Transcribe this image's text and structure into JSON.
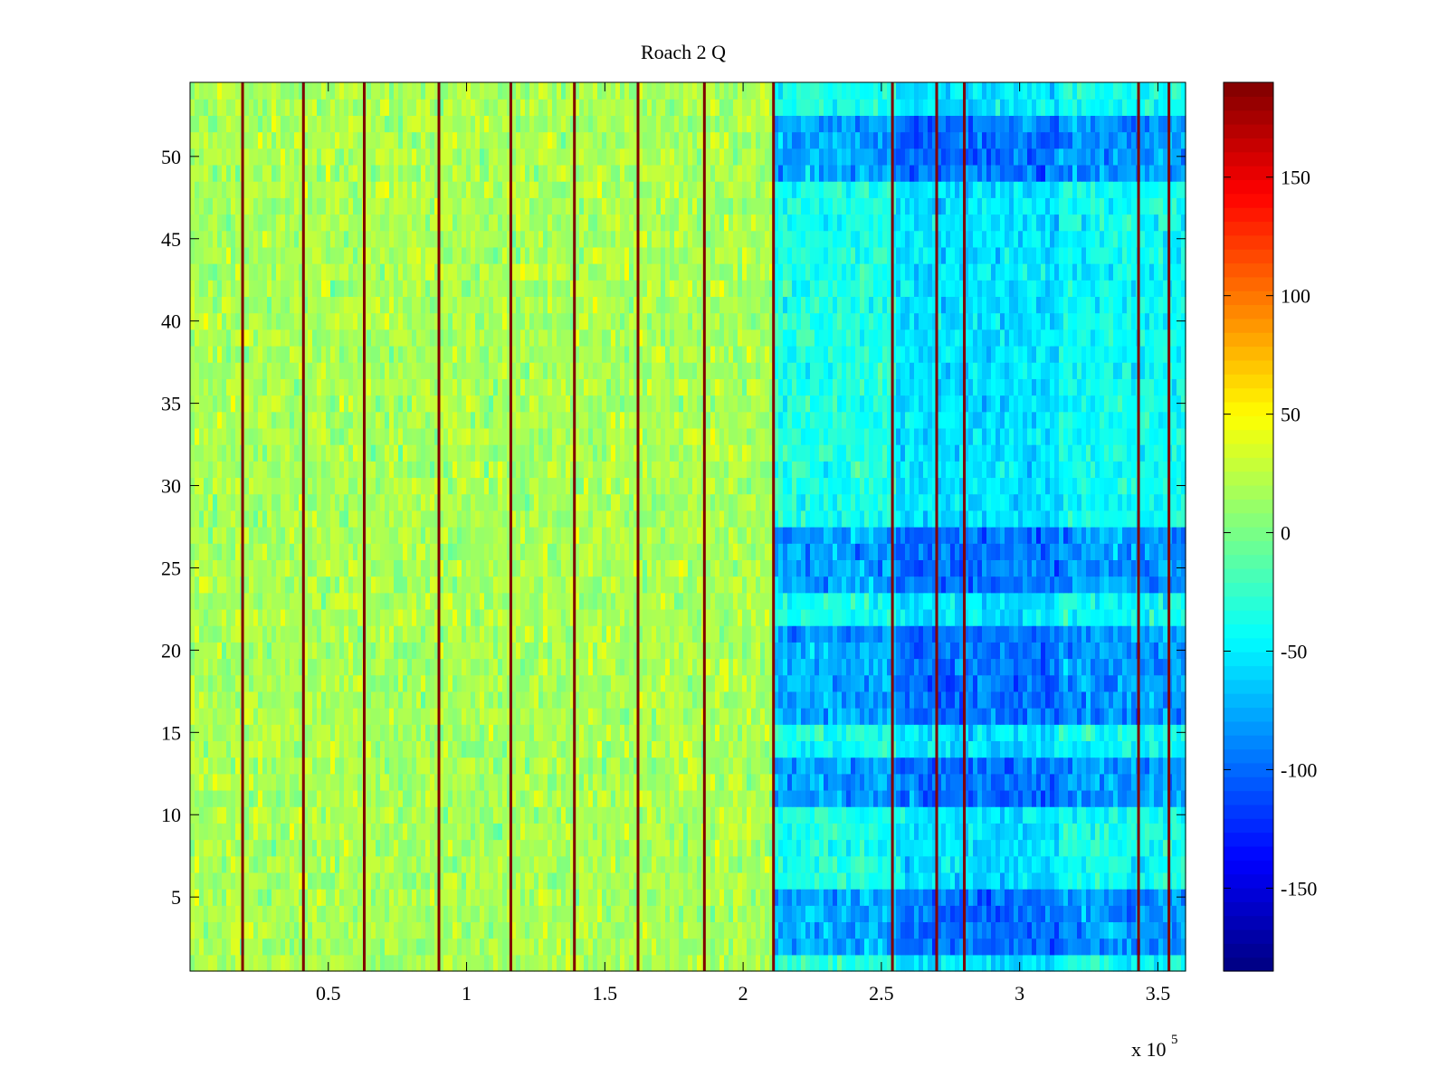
{
  "chart_data": {
    "type": "heatmap",
    "title": "Roach 2 Q",
    "xlabel": "",
    "ylabel": "",
    "x_exponent_label": {
      "base": "x 10",
      "exp": "5"
    },
    "xlim": [
      0,
      360000
    ],
    "ylim": [
      0.5,
      54.5
    ],
    "x_ticks": [
      {
        "value": 50000,
        "label": "0.5"
      },
      {
        "value": 100000,
        "label": "1"
      },
      {
        "value": 150000,
        "label": "1.5"
      },
      {
        "value": 200000,
        "label": "2"
      },
      {
        "value": 250000,
        "label": "2.5"
      },
      {
        "value": 300000,
        "label": "3"
      },
      {
        "value": 350000,
        "label": "3.5"
      }
    ],
    "y_ticks": [
      5,
      10,
      15,
      20,
      25,
      30,
      35,
      40,
      45,
      50
    ],
    "colormap": "jet",
    "clim": [
      -185,
      190
    ],
    "colorbar_ticks": [
      -150,
      -100,
      -50,
      0,
      50,
      100,
      150
    ],
    "rows": 54,
    "spikes_x": [
      19000,
      41000,
      63000,
      90000,
      116000,
      139000,
      162000,
      186000,
      211000,
      254000,
      270000,
      280000,
      343000,
      354000
    ],
    "regions": [
      {
        "x_range": [
          0,
          211000
        ],
        "mean": 18,
        "note": "mostly green-yellow"
      },
      {
        "x_range": [
          211000,
          254000
        ],
        "mean": -35
      },
      {
        "x_range": [
          254000,
          313000
        ],
        "mean": -55
      },
      {
        "x_range": [
          313000,
          360000
        ],
        "mean": -40
      }
    ],
    "strong_bands_rows": [
      [
        16,
        21
      ],
      [
        11,
        13
      ],
      [
        2,
        5
      ],
      [
        24,
        27
      ],
      [
        49,
        52
      ]
    ]
  }
}
